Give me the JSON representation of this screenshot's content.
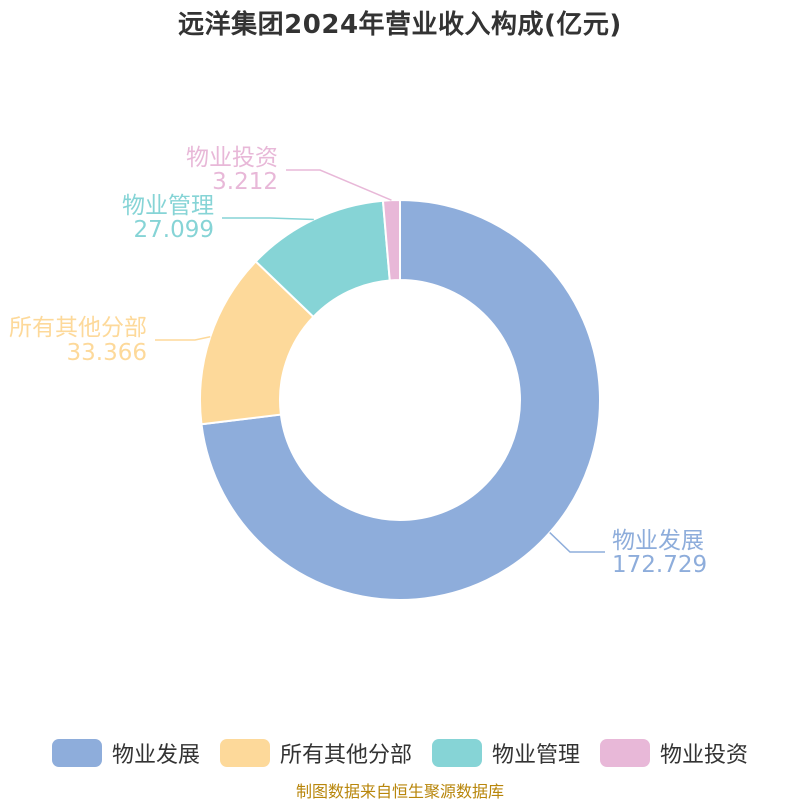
{
  "chart_data": {
    "type": "pie",
    "title": "远洋集团2024年营业收入构成(亿元)",
    "series": [
      {
        "name": "物业发展",
        "value": 172.729,
        "value_text": "172.729",
        "color": "#8eaddb"
      },
      {
        "name": "所有其他分部",
        "value": 33.366,
        "value_text": "33.366",
        "color": "#fdd99a"
      },
      {
        "name": "物业管理",
        "value": 27.099,
        "value_text": "27.099",
        "color": "#86d4d6"
      },
      {
        "name": "物业投资",
        "value": 3.212,
        "value_text": "3.212",
        "color": "#e8b8d8"
      }
    ],
    "donut": true,
    "legend_position": "bottom",
    "source": "制图数据来自恒生聚源数据库"
  }
}
